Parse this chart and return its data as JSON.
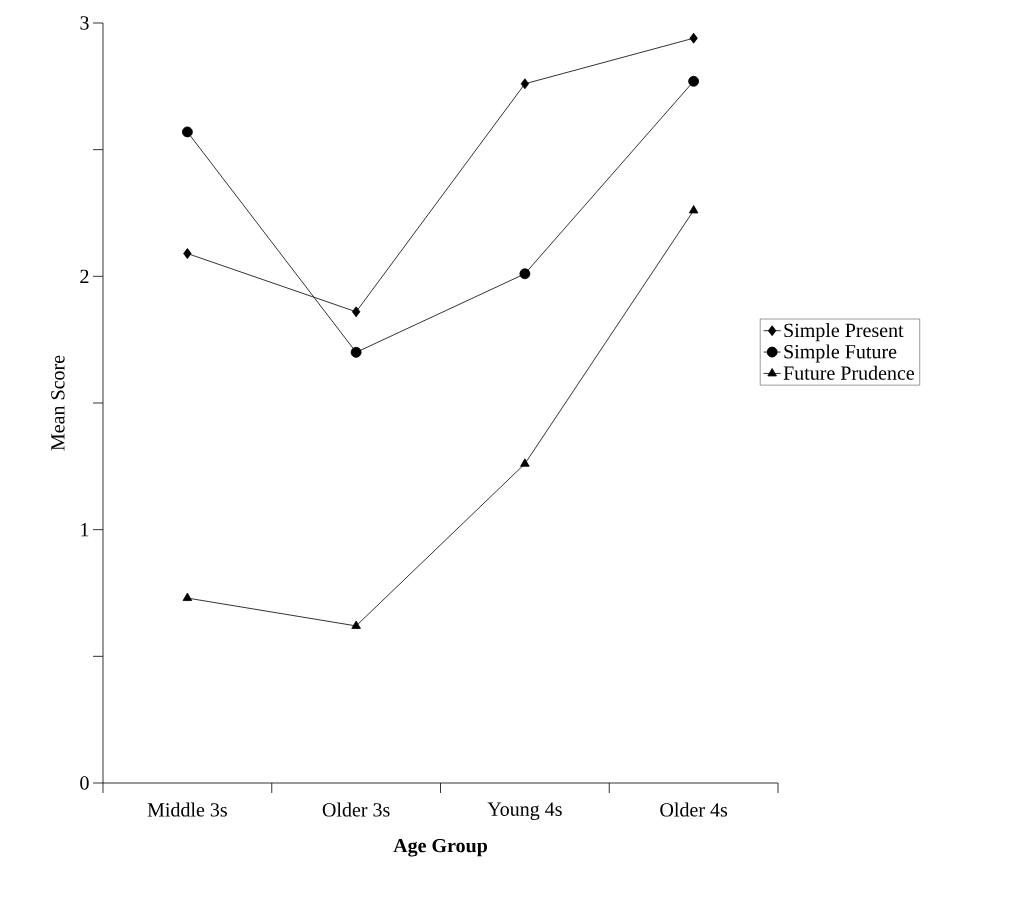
{
  "chart_data": {
    "type": "line",
    "xlabel": "Age Group",
    "ylabel": "Mean Score",
    "categories": [
      "Middle 3s",
      "Older 3s",
      "Young 4s",
      "Older 4s"
    ],
    "series": [
      {
        "name": "Simple Present",
        "color": "#000000",
        "marker": "diamond",
        "values": [
          2.09,
          1.86,
          2.76,
          2.94
        ]
      },
      {
        "name": "Simple Future",
        "color": "#000000",
        "marker": "circle",
        "values": [
          2.57,
          1.7,
          2.01,
          2.77
        ]
      },
      {
        "name": "Future Prudence",
        "color": "#000000",
        "marker": "triangle",
        "values": [
          0.73,
          0.62,
          1.26,
          2.26
        ]
      }
    ],
    "ylim": [
      0,
      3
    ],
    "yticks": [
      0,
      {
        "value": 0.5,
        "label": null
      },
      1,
      {
        "value": 1.5,
        "label": null
      },
      2,
      {
        "value": 2.5,
        "label": null
      },
      3
    ],
    "grid": false,
    "legend": "right",
    "line_style": "solid"
  }
}
